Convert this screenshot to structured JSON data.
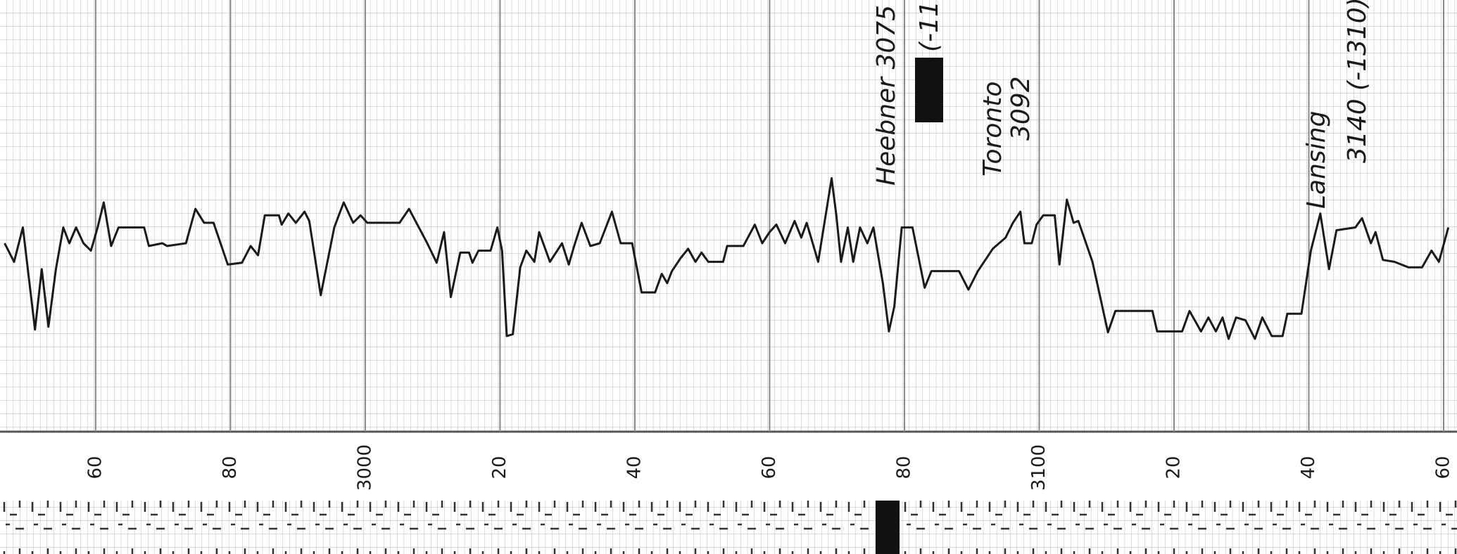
{
  "chart_data": {
    "type": "line",
    "color": "#1a1a1a",
    "grid": true,
    "xlim": [
      2946.5,
      3161.2
    ],
    "ylim": [
      0,
      46.5
    ],
    "xticks": [
      {
        "value": 2960,
        "label": "60"
      },
      {
        "value": 2980,
        "label": "80"
      },
      3000,
      {
        "value": 3020,
        "label": "20"
      },
      {
        "value": 3040,
        "label": "40"
      },
      {
        "value": 3060,
        "label": "60"
      },
      {
        "value": 3080,
        "label": "80"
      },
      3100,
      {
        "value": 3120,
        "label": "20"
      },
      {
        "value": 3140,
        "label": "40"
      },
      {
        "value": 3160,
        "label": "60"
      }
    ],
    "annotations": [
      "Heebner 3075",
      "(-11",
      "Toronto",
      "3092",
      "Lansing",
      "3140 (-1310)"
    ],
    "x": [
      2946.5,
      2947.9,
      2949.2,
      2951.0,
      2952.0,
      2953.0,
      2954.1,
      2955.2,
      2956.1,
      2957.1,
      2958.2,
      2959.3,
      2960.3,
      2961.2,
      2962.3,
      2963.4,
      2967.2,
      2967.9,
      2969.9,
      2970.6,
      2973.4,
      2974.8,
      2976.1,
      2977.5,
      2979.6,
      2981.7,
      2983.0,
      2984.1,
      2985.1,
      2987.2,
      2987.6,
      2988.6,
      2989.7,
      2991.0,
      2991.7,
      2993.4,
      2995.4,
      2996.8,
      2998.2,
      2999.3,
      3000.3,
      3005.1,
      3006.5,
      3009.2,
      3010.6,
      3011.7,
      3012.7,
      3014.1,
      3015.4,
      3015.9,
      3016.8,
      3018.6,
      3019.6,
      3020.3,
      3021.0,
      3021.9,
      3023.0,
      3023.9,
      3025.1,
      3025.8,
      3027.4,
      3029.2,
      3030.2,
      3031.0,
      3032.1,
      3033.4,
      3034.8,
      3036.6,
      3037.9,
      3039.6,
      3041.0,
      3043.0,
      3044.0,
      3044.8,
      3045.5,
      3046.8,
      3047.9,
      3049.0,
      3049.9,
      3050.9,
      3053.1,
      3053.7,
      3056.1,
      3057.8,
      3058.9,
      3060.0,
      3061.0,
      3062.3,
      3063.7,
      3064.7,
      3065.5,
      3067.2,
      3069.2,
      3069.9,
      3070.6,
      3071.6,
      3072.4,
      3073.4,
      3074.5,
      3075.4,
      3076.8,
      3077.7,
      3078.5,
      3079.6,
      3081.2,
      3083.0,
      3084.0,
      3088.1,
      3089.5,
      3090.9,
      3093.1,
      3095.0,
      3096.1,
      3097.2,
      3097.8,
      3098.9,
      3099.6,
      3100.6,
      3102.3,
      3103.0,
      3104.1,
      3105.1,
      3105.8,
      3107.9,
      3110.2,
      3111.3,
      3116.8,
      3117.5,
      3121.2,
      3122.3,
      3124.0,
      3125.1,
      3126.2,
      3127.2,
      3128.1,
      3129.2,
      3130.6,
      3132.0,
      3133.1,
      3134.5,
      3136.1,
      3136.8,
      3138.9,
      3140.3,
      3141.7,
      3143.0,
      3144.1,
      3146.9,
      3147.9,
      3149.2,
      3149.9,
      3151.0,
      3152.7,
      3154.8,
      3156.8,
      3158.2,
      3159.3,
      3160.7
    ],
    "values": [
      20.3,
      18.3,
      22,
      11,
      17.5,
      11.3,
      17.5,
      22,
      20.3,
      22,
      20.3,
      19.5,
      22,
      24.7,
      20,
      22,
      22,
      20,
      20.3,
      20,
      20.3,
      24,
      22.5,
      22.5,
      18,
      18.2,
      20,
      19,
      23.3,
      23.3,
      22.3,
      23.5,
      22.5,
      23.7,
      22.7,
      14.7,
      22,
      24.7,
      22.5,
      23.3,
      22.5,
      22.5,
      24,
      20.3,
      18.2,
      21.5,
      14.5,
      19.3,
      19.3,
      18.2,
      19.5,
      19.5,
      22,
      19.5,
      10.3,
      10.5,
      17.7,
      19.5,
      18.3,
      21.5,
      18.3,
      20.3,
      18,
      20,
      22.5,
      20,
      20.3,
      23.7,
      20.3,
      20.3,
      15,
      15,
      17,
      16,
      17.3,
      18.7,
      19.7,
      18.3,
      19.3,
      18.3,
      18.3,
      20,
      20,
      22.3,
      20.3,
      21.5,
      22.3,
      20.3,
      22.7,
      20.9,
      22.5,
      18.3,
      27.3,
      23.3,
      18.3,
      22,
      18.3,
      22,
      20.3,
      22,
      16,
      10.8,
      13.5,
      22,
      22,
      15.5,
      17.3,
      17.3,
      15.3,
      17.3,
      19.7,
      20.9,
      22.5,
      23.7,
      20.3,
      20.3,
      22.3,
      23.3,
      23.3,
      18,
      25,
      22.5,
      22.7,
      18.3,
      10.7,
      13,
      13,
      10.8,
      10.8,
      13,
      10.8,
      12.3,
      10.8,
      12.3,
      10,
      12.3,
      12,
      10,
      12.3,
      10.3,
      10.3,
      12.7,
      12.7,
      19.5,
      23.5,
      17.5,
      21.7,
      22,
      23,
      20.3,
      21.5,
      18.5,
      18.3,
      17.7,
      17.7,
      19.5,
      18.3,
      22
    ]
  }
}
